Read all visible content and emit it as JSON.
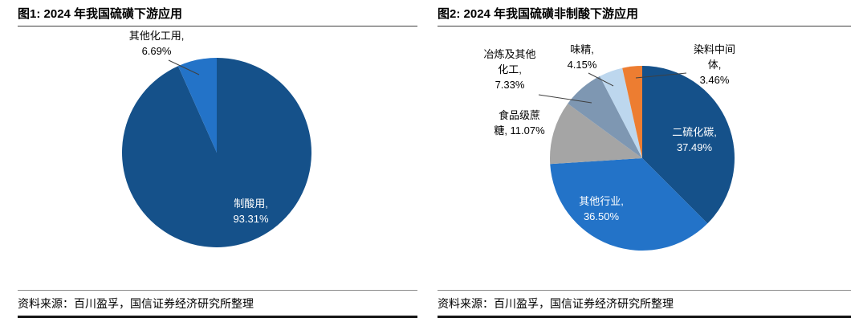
{
  "figures": [
    {
      "title": "图1: 2024 年我国硫磺下游应用",
      "source": "资料来源：百川盈孚，国信证券经济研究所整理",
      "chart_data": {
        "type": "pie",
        "title": "2024 年我国硫磺下游应用",
        "direction": "clockwise",
        "start_angle_deg": 0,
        "unit": "%",
        "slices": [
          {
            "label": "制酸用",
            "value": 93.31,
            "color": "#15518A"
          },
          {
            "label": "其他化工用",
            "value": 6.69,
            "color": "#2373C8"
          }
        ]
      },
      "labels": {
        "qita_huagong": {
          "l1": "其他化工用,",
          "l2": "6.69%"
        },
        "zhisuan": {
          "l1": "制酸用,",
          "l2": "93.31%"
        }
      }
    },
    {
      "title": "图2: 2024 年我国硫磺非制酸下游应用",
      "source": "资料来源：百川盈孚，国信证券经济研究所整理",
      "chart_data": {
        "type": "pie",
        "title": "2024 年我国硫磺非制酸下游应用",
        "direction": "clockwise",
        "start_angle_deg": 0,
        "unit": "%",
        "slices": [
          {
            "label": "二硫化碳",
            "value": 37.49,
            "color": "#15518A"
          },
          {
            "label": "其他行业",
            "value": 36.5,
            "color": "#2373C8"
          },
          {
            "label": "食品级蔗糖",
            "value": 11.07,
            "color": "#A5A5A5"
          },
          {
            "label": "冶炼及其他化工",
            "value": 7.33,
            "color": "#7E97B2"
          },
          {
            "label": "味精",
            "value": 4.15,
            "color": "#BDD7EE"
          },
          {
            "label": "染料中间体",
            "value": 3.46,
            "color": "#ED7D31"
          }
        ]
      },
      "labels": {
        "yelian": {
          "l1": "冶炼及其他",
          "l2": "化工,",
          "l3": "7.33%"
        },
        "weijing": {
          "l1": "味精,",
          "l2": "4.15%"
        },
        "ranliao": {
          "l1": "染料中间",
          "l2": "体,",
          "l3": "3.46%"
        },
        "shipin": {
          "l1": "食品级蔗",
          "l2": "糖, 11.07%"
        },
        "erliuhuatan": {
          "l1": "二硫化碳,",
          "l2": "37.49%"
        },
        "qita_hangye": {
          "l1": "其他行业,",
          "l2": "36.50%"
        }
      }
    }
  ]
}
